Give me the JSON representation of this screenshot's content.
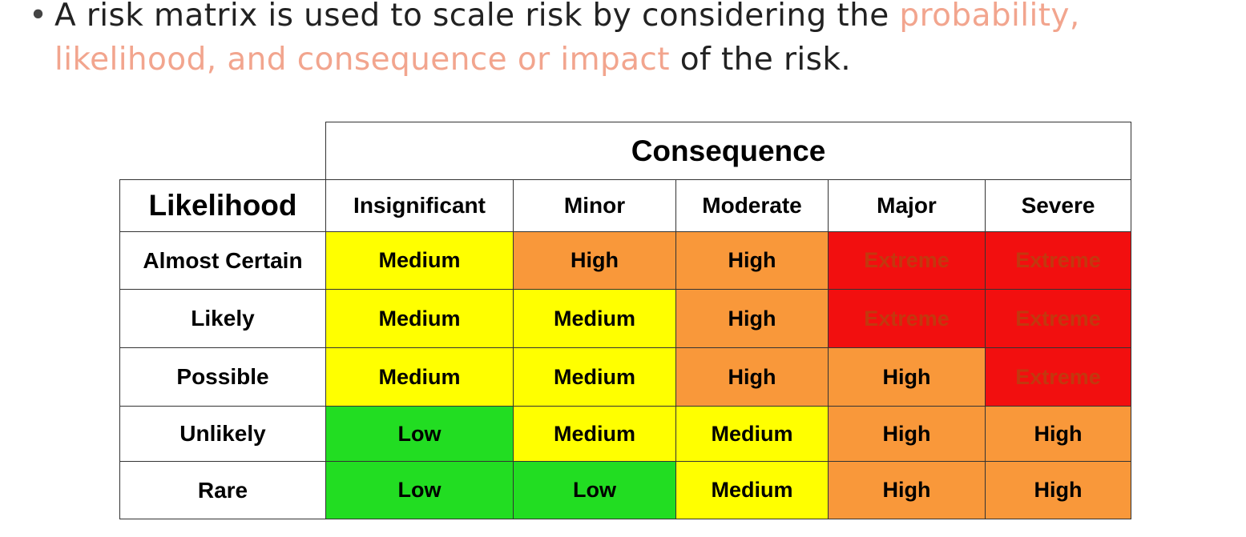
{
  "bullet": {
    "dot": "•",
    "part1": "A risk matrix is used to scale risk by considering the ",
    "highlight1": "probability,",
    "highlight2": "likelihood, and consequence or impact",
    "part2": " of the risk."
  },
  "matrix": {
    "consequence_title": "Consequence",
    "likelihood_title": "Likelihood",
    "columns": [
      "Insignificant",
      "Minor",
      "Moderate",
      "Major",
      "Severe"
    ],
    "rows": [
      {
        "label": "Almost Certain",
        "cells": [
          "Medium",
          "High",
          "High",
          "Extreme",
          "Extreme"
        ]
      },
      {
        "label": "Likely",
        "cells": [
          "Medium",
          "Medium",
          "High",
          "Extreme",
          "Extreme"
        ]
      },
      {
        "label": "Possible",
        "cells": [
          "Medium",
          "Medium",
          "High",
          "High",
          "Extreme"
        ]
      },
      {
        "label": "Unlikely",
        "cells": [
          "Low",
          "Medium",
          "Medium",
          "High",
          "High"
        ]
      },
      {
        "label": "Rare",
        "cells": [
          "Low",
          "Low",
          "Medium",
          "High",
          "High"
        ]
      }
    ]
  },
  "colors": {
    "highlight_text": "#F2A58E",
    "Low": "#22DD22",
    "Medium": "#FFFF00",
    "High": "#F9983A",
    "Extreme": "#F20F0F",
    "extreme_text": "#C2380E"
  }
}
